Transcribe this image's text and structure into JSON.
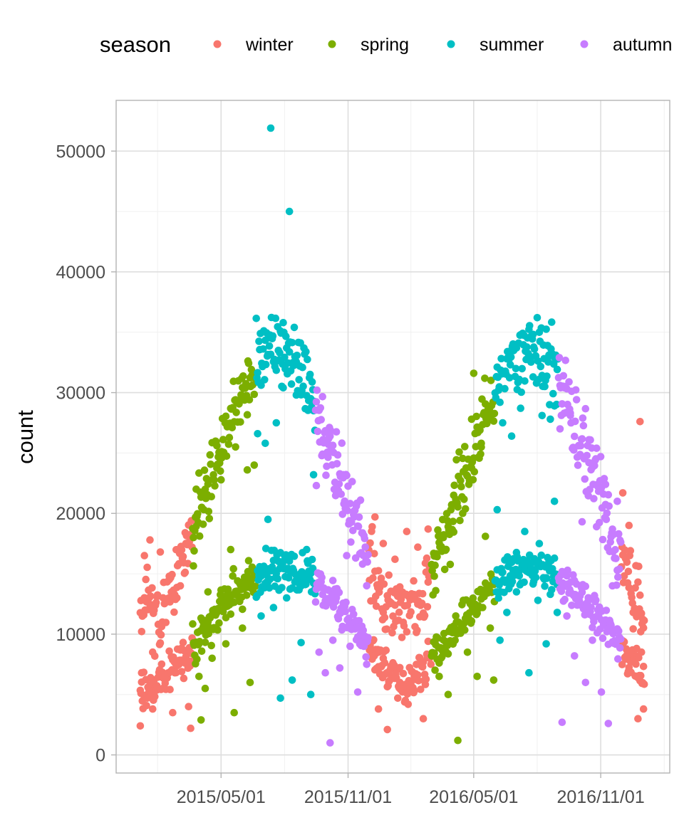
{
  "chart_data": {
    "type": "scatter",
    "xlabel": "",
    "ylabel": "count",
    "x_type": "date",
    "xlim": [
      "2014-11-30",
      "2017-02-09"
    ],
    "ylim": [
      -1500,
      54200
    ],
    "x_ticks": [
      "2015/05/01",
      "2015/11/01",
      "2016/05/01",
      "2016/11/01"
    ],
    "y_ticks": [
      0,
      10000,
      20000,
      30000,
      40000,
      50000
    ],
    "grid": true,
    "legend": {
      "title": "season",
      "position": "top"
    },
    "series": [
      {
        "name": "winter",
        "color": "#F8766D",
        "ranges": [
          [
            "2015-01-04",
            "2015-03-20"
          ],
          [
            "2015-12-01",
            "2016-02-29"
          ],
          [
            "2016-12-01",
            "2017-01-03"
          ]
        ],
        "points": [
          [
            "2015-01-06",
            6800
          ],
          [
            "2015-01-10",
            16500
          ],
          [
            "2015-01-14",
            4700
          ],
          [
            "2015-01-18",
            17800
          ],
          [
            "2015-01-22",
            3800
          ],
          [
            "2015-02-02",
            16800
          ],
          [
            "2015-02-08",
            6500
          ],
          [
            "2015-02-15",
            14800
          ],
          [
            "2015-02-20",
            3500
          ],
          [
            "2015-02-26",
            13000
          ],
          [
            "2015-03-05",
            6900
          ],
          [
            "2015-03-10",
            18400
          ],
          [
            "2015-03-15",
            4000
          ],
          [
            "2015-03-18",
            2200
          ],
          [
            "2015-01-04",
            2400
          ],
          [
            "2015-12-05",
            8100
          ],
          [
            "2015-12-10",
            19700
          ],
          [
            "2015-12-15",
            3800
          ],
          [
            "2015-12-22",
            17500
          ],
          [
            "2015-12-28",
            2100
          ],
          [
            "2016-01-08",
            16200
          ],
          [
            "2016-01-15",
            6000
          ],
          [
            "2016-01-25",
            18500
          ],
          [
            "2016-02-05",
            5300
          ],
          [
            "2016-02-10",
            17200
          ],
          [
            "2016-02-18",
            3000
          ],
          [
            "2016-02-25",
            18700
          ],
          [
            "2016-12-03",
            21700
          ],
          [
            "2016-12-08",
            8200
          ],
          [
            "2016-12-12",
            19000
          ],
          [
            "2016-12-18",
            11800
          ],
          [
            "2016-12-25",
            3000
          ],
          [
            "2016-12-28",
            27600
          ],
          [
            "2017-01-02",
            3800
          ]
        ]
      },
      {
        "name": "spring",
        "color": "#7CAE00",
        "ranges": [
          [
            "2015-03-21",
            "2015-06-20"
          ],
          [
            "2016-03-01",
            "2016-05-31"
          ]
        ],
        "points": [
          [
            "2015-03-22",
            18000
          ],
          [
            "2015-03-26",
            22000
          ],
          [
            "2015-03-30",
            6500
          ],
          [
            "2015-04-03",
            20500
          ],
          [
            "2015-04-08",
            5500
          ],
          [
            "2015-04-12",
            13500
          ],
          [
            "2015-04-18",
            8000
          ],
          [
            "2015-04-25",
            25600
          ],
          [
            "2015-05-02",
            24600
          ],
          [
            "2015-05-08",
            9200
          ],
          [
            "2015-05-15",
            17000
          ],
          [
            "2015-05-22",
            25500
          ],
          [
            "2015-06-01",
            10500
          ],
          [
            "2015-06-08",
            23600
          ],
          [
            "2015-06-12",
            6000
          ],
          [
            "2015-06-18",
            24000
          ],
          [
            "2015-04-02",
            2900
          ],
          [
            "2015-05-20",
            3500
          ],
          [
            "2016-03-05",
            14800
          ],
          [
            "2016-03-12",
            6500
          ],
          [
            "2016-03-18",
            18000
          ],
          [
            "2016-03-25",
            5000
          ],
          [
            "2016-04-02",
            21500
          ],
          [
            "2016-04-08",
            1200
          ],
          [
            "2016-04-15",
            20000
          ],
          [
            "2016-04-22",
            8500
          ],
          [
            "2016-04-28",
            27800
          ],
          [
            "2016-05-01",
            31600
          ],
          [
            "2016-05-06",
            6500
          ],
          [
            "2016-05-12",
            25800
          ],
          [
            "2016-05-18",
            18100
          ],
          [
            "2016-05-25",
            10500
          ],
          [
            "2016-05-30",
            6200
          ]
        ]
      },
      {
        "name": "summer",
        "color": "#00BFC4",
        "ranges": [
          [
            "2015-06-21",
            "2015-09-14"
          ],
          [
            "2016-06-01",
            "2016-08-31"
          ]
        ],
        "points": [
          [
            "2015-06-23",
            26600
          ],
          [
            "2015-06-28",
            11500
          ],
          [
            "2015-07-04",
            25800
          ],
          [
            "2015-07-08",
            19500
          ],
          [
            "2015-07-12",
            51900
          ],
          [
            "2015-07-16",
            12200
          ],
          [
            "2015-07-20",
            27500
          ],
          [
            "2015-07-26",
            4700
          ],
          [
            "2015-07-30",
            30400
          ],
          [
            "2015-08-04",
            13000
          ],
          [
            "2015-08-08",
            45000
          ],
          [
            "2015-08-12",
            6200
          ],
          [
            "2015-08-18",
            29800
          ],
          [
            "2015-08-25",
            9300
          ],
          [
            "2015-09-02",
            17000
          ],
          [
            "2015-09-08",
            5000
          ],
          [
            "2015-09-12",
            23200
          ],
          [
            "2016-06-04",
            20300
          ],
          [
            "2016-06-08",
            9500
          ],
          [
            "2016-06-12",
            27500
          ],
          [
            "2016-06-18",
            11800
          ],
          [
            "2016-06-25",
            26400
          ],
          [
            "2016-07-02",
            13500
          ],
          [
            "2016-07-08",
            28700
          ],
          [
            "2016-07-14",
            18500
          ],
          [
            "2016-07-20",
            6800
          ],
          [
            "2016-07-26",
            31300
          ],
          [
            "2016-08-02",
            12800
          ],
          [
            "2016-08-08",
            28100
          ],
          [
            "2016-08-14",
            9200
          ],
          [
            "2016-08-20",
            27800
          ],
          [
            "2016-08-26",
            21000
          ],
          [
            "2016-08-30",
            11800
          ]
        ]
      },
      {
        "name": "autumn",
        "color": "#C77CFF",
        "ranges": [
          [
            "2015-09-15",
            "2015-11-30"
          ],
          [
            "2016-09-01",
            "2016-11-30"
          ]
        ],
        "points": [
          [
            "2015-09-16",
            22300
          ],
          [
            "2015-09-20",
            8500
          ],
          [
            "2015-09-25",
            24900
          ],
          [
            "2015-09-29",
            6800
          ],
          [
            "2015-10-04",
            26200
          ],
          [
            "2015-10-06",
            1000
          ],
          [
            "2015-10-10",
            9500
          ],
          [
            "2015-10-15",
            21800
          ],
          [
            "2015-10-20",
            7200
          ],
          [
            "2015-10-25",
            23200
          ],
          [
            "2015-10-30",
            16500
          ],
          [
            "2015-11-04",
            9000
          ],
          [
            "2015-11-10",
            19700
          ],
          [
            "2015-11-15",
            5200
          ],
          [
            "2015-11-22",
            15800
          ],
          [
            "2015-11-28",
            7500
          ],
          [
            "2016-09-03",
            27000
          ],
          [
            "2016-09-06",
            2700
          ],
          [
            "2016-09-09",
            30400
          ],
          [
            "2016-09-13",
            11500
          ],
          [
            "2016-09-18",
            28100
          ],
          [
            "2016-09-24",
            8200
          ],
          [
            "2016-09-30",
            25600
          ],
          [
            "2016-10-05",
            19300
          ],
          [
            "2016-10-10",
            6000
          ],
          [
            "2016-10-15",
            24200
          ],
          [
            "2016-10-20",
            9500
          ],
          [
            "2016-10-26",
            18900
          ],
          [
            "2016-11-02",
            5200
          ],
          [
            "2016-11-08",
            22400
          ],
          [
            "2016-11-12",
            2600
          ],
          [
            "2016-11-18",
            14000
          ],
          [
            "2016-11-25",
            21000
          ]
        ]
      }
    ]
  }
}
